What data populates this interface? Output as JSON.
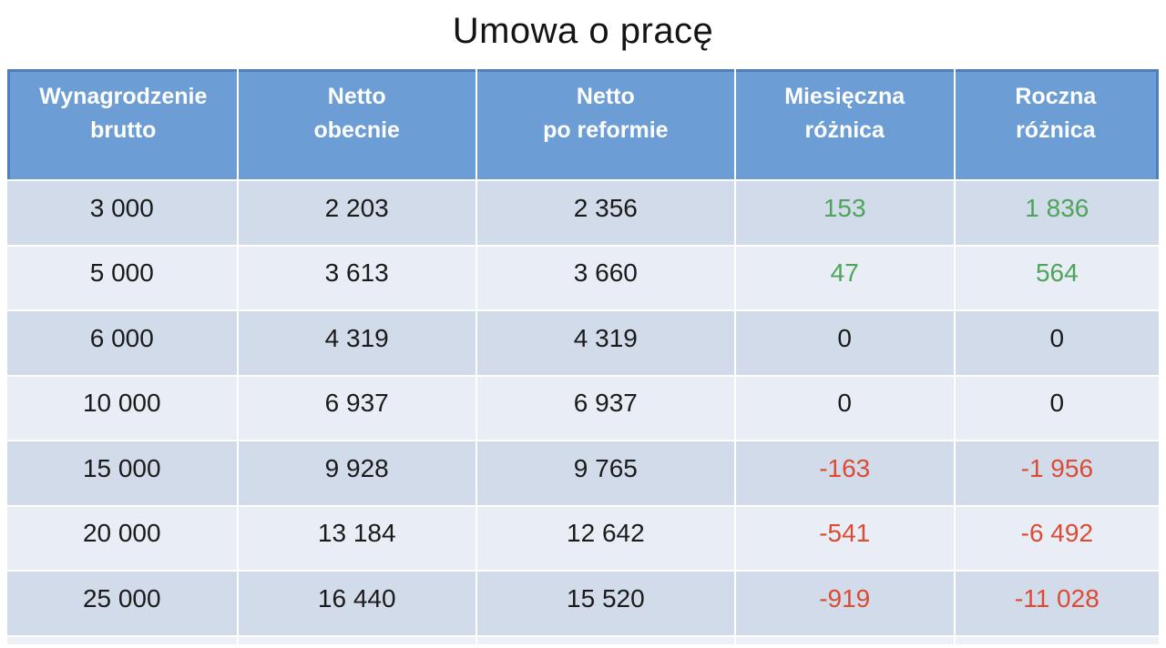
{
  "title": "Umowa o pracę",
  "table": {
    "headers": [
      {
        "line1": "Wynagrodzenie",
        "line2": "brutto"
      },
      {
        "line1": "Netto",
        "line2": "obecnie"
      },
      {
        "line1": "Netto",
        "line2": "po reformie"
      },
      {
        "line1": "Miesięczna",
        "line2": "różnica"
      },
      {
        "line1": "Roczna",
        "line2": "różnica"
      }
    ],
    "rows": [
      {
        "brutto": "3 000",
        "netto_obecnie": "2 203",
        "netto_po_reformie": "2 356",
        "miesieczna_roznica": "153",
        "roczna_roznica": "1 836",
        "trend": "pos"
      },
      {
        "brutto": "5 000",
        "netto_obecnie": "3 613",
        "netto_po_reformie": "3 660",
        "miesieczna_roznica": "47",
        "roczna_roznica": "564",
        "trend": "pos"
      },
      {
        "brutto": "6 000",
        "netto_obecnie": "4 319",
        "netto_po_reformie": "4 319",
        "miesieczna_roznica": "0",
        "roczna_roznica": "0",
        "trend": "zero"
      },
      {
        "brutto": "10 000",
        "netto_obecnie": "6 937",
        "netto_po_reformie": "6 937",
        "miesieczna_roznica": "0",
        "roczna_roznica": "0",
        "trend": "zero"
      },
      {
        "brutto": "15 000",
        "netto_obecnie": "9 928",
        "netto_po_reformie": "9 765",
        "miesieczna_roznica": "-163",
        "roczna_roznica": "-1 956",
        "trend": "neg"
      },
      {
        "brutto": "20 000",
        "netto_obecnie": "13 184",
        "netto_po_reformie": "12 642",
        "miesieczna_roznica": "-541",
        "roczna_roznica": "-6 492",
        "trend": "neg"
      },
      {
        "brutto": "25 000",
        "netto_obecnie": "16 440",
        "netto_po_reformie": "15 520",
        "miesieczna_roznica": "-919",
        "roczna_roznica": "-11 028",
        "trend": "neg"
      }
    ]
  },
  "colors": {
    "header_bg": "#6C9DD4",
    "header_border": "#4E7FB8",
    "row_odd_bg": "#D2DBE9",
    "row_even_bg": "#E9EDF5",
    "positive_text": "#4EA45A",
    "negative_text": "#DC4B32",
    "neutral_text": "#1B1B1B",
    "sliver_bg": "#EDF1F7"
  },
  "chart_data": {
    "type": "table",
    "title": "Umowa o pracę",
    "columns": [
      "Wynagrodzenie brutto",
      "Netto obecnie",
      "Netto po reformie",
      "Miesięczna różnica",
      "Roczna różnica"
    ],
    "rows": [
      [
        3000,
        2203,
        2356,
        153,
        1836
      ],
      [
        5000,
        3613,
        3660,
        47,
        564
      ],
      [
        6000,
        4319,
        4319,
        0,
        0
      ],
      [
        10000,
        6937,
        6937,
        0,
        0
      ],
      [
        15000,
        9928,
        9765,
        -163,
        -1956
      ],
      [
        20000,
        13184,
        12642,
        -541,
        -6492
      ],
      [
        25000,
        16440,
        15520,
        -919,
        -11028
      ]
    ],
    "notes": "Positive differences rendered green, negative red, zero black. Numbers use space as thousands separator."
  }
}
